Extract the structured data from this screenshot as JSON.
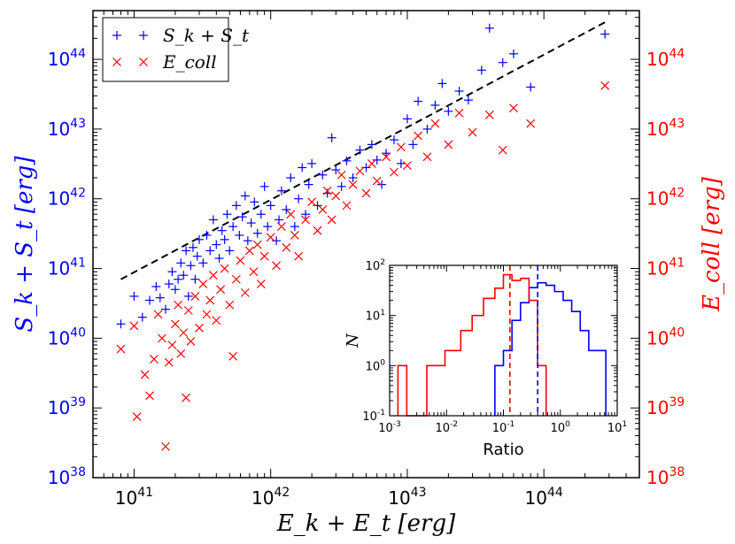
{
  "chart_data": {
    "type": "scatter",
    "xlabel": "E_k + E_t [erg]",
    "ylabel_left": "S_k + S_t [erg]",
    "ylabel_right": "E_coll [erg]",
    "xscale": "log",
    "yscale": "log",
    "xlim": [
      5e+40,
      5e+44
    ],
    "ylim": [
      1e+38,
      5e+44
    ],
    "x_ticks": [
      "10^41",
      "10^42",
      "10^43",
      "10^44"
    ],
    "y_ticks": [
      "10^38",
      "10^39",
      "10^40",
      "10^41",
      "10^42",
      "10^43",
      "10^44"
    ],
    "legend": [
      {
        "label": "S_k + S_t",
        "marker": "+",
        "color": "#0000ff"
      },
      {
        "label": "E_coll",
        "marker": "x",
        "color": "#ff0000"
      }
    ],
    "legend_position": "top-left",
    "reference_line": {
      "style": "dashed",
      "color": "#000000",
      "x": [
        8e+40,
        2.8e+44
      ],
      "y": [
        7e+40,
        3.4e+44
      ]
    },
    "series": [
      {
        "name": "S_k + S_t",
        "color": "#0000ff",
        "marker": "+",
        "points": [
          [
            8e+40,
            1.6e+40
          ],
          [
            1e+41,
            4e+40
          ],
          [
            1.15e+41,
            2e+40
          ],
          [
            1.3e+41,
            3.5e+40
          ],
          [
            1.45e+41,
            5.5e+40
          ],
          [
            1.55e+41,
            3.8e+40
          ],
          [
            1.7e+41,
            2.6e+40
          ],
          [
            1.8e+41,
            6e+40
          ],
          [
            1.9e+41,
            9e+40
          ],
          [
            2e+41,
            5e+40
          ],
          [
            2.1e+41,
            7e+40
          ],
          [
            2.2e+41,
            1.2e+41
          ],
          [
            2.3e+41,
            8e+40
          ],
          [
            2.4e+41,
            1.8e+41
          ],
          [
            2.5e+41,
            4e+40
          ],
          [
            2.6e+41,
            1.1e+41
          ],
          [
            2.7e+41,
            2e+41
          ],
          [
            2.8e+41,
            7e+40
          ],
          [
            2.9e+41,
            1.5e+41
          ],
          [
            3e+41,
            2.6e+41
          ],
          [
            3.2e+41,
            1.2e+41
          ],
          [
            3.4e+41,
            3e+41
          ],
          [
            3.6e+41,
            1.8e+41
          ],
          [
            3.8e+41,
            5e+41
          ],
          [
            4e+41,
            2.2e+41
          ],
          [
            4.2e+41,
            1.4e+41
          ],
          [
            4.4e+41,
            3.5e+41
          ],
          [
            4.6e+41,
            2.6e+41
          ],
          [
            4.8e+41,
            6e+41
          ],
          [
            5e+41,
            1.8e+41
          ],
          [
            5.3e+41,
            4e+41
          ],
          [
            5.6e+41,
            8e+41
          ],
          [
            5.9e+41,
            3e+41
          ],
          [
            6.2e+41,
            5.5e+41
          ],
          [
            6.5e+41,
            1.1e+42
          ],
          [
            6.8e+41,
            2.5e+41
          ],
          [
            7.2e+41,
            4.5e+41
          ],
          [
            7.6e+41,
            9e+41
          ],
          [
            8e+41,
            3.2e+41
          ],
          [
            8.5e+41,
            6e+41
          ],
          [
            9e+41,
            1.5e+42
          ],
          [
            9.5e+41,
            4e+41
          ],
          [
            1e+42,
            8e+41
          ],
          [
            1.1e+42,
            2.5e+41
          ],
          [
            1.15e+42,
            5e+41
          ],
          [
            1.2e+42,
            1.3e+42
          ],
          [
            1.3e+42,
            7e+41
          ],
          [
            1.4e+42,
            2e+42
          ],
          [
            1.5e+42,
            4e+41
          ],
          [
            1.6e+42,
            1e+42
          ],
          [
            1.7e+42,
            2.8e+42
          ],
          [
            1.8e+42,
            6e+41
          ],
          [
            1.9e+42,
            1.6e+42
          ],
          [
            2e+42,
            3.2e+42
          ],
          [
            2.2e+42,
            8e+41
          ],
          [
            2.4e+42,
            2.2e+42
          ],
          [
            2.6e+42,
            1.2e+42
          ],
          [
            2.8e+42,
            7.5e+42
          ],
          [
            3e+42,
            2.6e+42
          ],
          [
            3.3e+42,
            1.5e+42
          ],
          [
            3.6e+42,
            3.5e+42
          ],
          [
            4e+42,
            2e+42
          ],
          [
            4.5e+42,
            5e+42
          ],
          [
            5e+42,
            2.8e+42
          ],
          [
            5.5e+42,
            6e+42
          ],
          [
            6e+42,
            3.6e+42
          ],
          [
            6.5e+42,
            1.6e+42
          ],
          [
            7e+42,
            4.5e+42
          ],
          [
            8e+42,
            7e+42
          ],
          [
            9e+42,
            3.2e+42
          ],
          [
            1e+43,
            1.4e+43
          ],
          [
            1.1e+43,
            6e+42
          ],
          [
            1.2e+43,
            2.5e+43
          ],
          [
            1.4e+43,
            1e+43
          ],
          [
            1.6e+43,
            2.2e+43
          ],
          [
            1.8e+43,
            4.5e+43
          ],
          [
            2e+43,
            1.8e+43
          ],
          [
            2.4e+43,
            3.5e+43
          ],
          [
            2.8e+43,
            2.6e+43
          ],
          [
            3.5e+43,
            7e+43
          ],
          [
            4e+43,
            2.8e+44
          ],
          [
            5e+43,
            9e+43
          ],
          [
            6e+43,
            1.2e+44
          ],
          [
            8e+43,
            4e+43
          ],
          [
            2.8e+44,
            2.3e+44
          ]
        ]
      },
      {
        "name": "E_coll",
        "color": "#ff0000",
        "marker": "x",
        "points": [
          [
            8e+40,
            7e+39
          ],
          [
            1e+41,
            1.5e+40
          ],
          [
            1.05e+41,
            7.5e+38
          ],
          [
            1.2e+41,
            3e+39
          ],
          [
            1.3e+41,
            1.5e+39
          ],
          [
            1.4e+41,
            5e+39
          ],
          [
            1.5e+41,
            2.2e+40
          ],
          [
            1.6e+41,
            1e+40
          ],
          [
            1.7e+41,
            2.8e+38
          ],
          [
            1.8e+41,
            4.5e+39
          ],
          [
            1.9e+41,
            8e+39
          ],
          [
            2e+41,
            1.6e+40
          ],
          [
            2.1e+41,
            3e+40
          ],
          [
            2.2e+41,
            6e+39
          ],
          [
            2.3e+41,
            1.2e+40
          ],
          [
            2.4e+41,
            1.4e+39
          ],
          [
            2.5e+41,
            2.5e+40
          ],
          [
            2.6e+41,
            9e+39
          ],
          [
            2.8e+41,
            4e+40
          ],
          [
            3e+41,
            1.4e+40
          ],
          [
            3.2e+41,
            6e+40
          ],
          [
            3.4e+41,
            2.2e+40
          ],
          [
            3.6e+41,
            3.5e+40
          ],
          [
            3.8e+41,
            8e+40
          ],
          [
            4e+41,
            1.8e+40
          ],
          [
            4.3e+41,
            5e+40
          ],
          [
            4.6e+41,
            1e+41
          ],
          [
            5e+41,
            3e+40
          ],
          [
            5.3e+41,
            5.5e+39
          ],
          [
            5.6e+41,
            7e+40
          ],
          [
            6e+41,
            1.3e+41
          ],
          [
            6.5e+41,
            4.5e+40
          ],
          [
            7e+41,
            1.8e+41
          ],
          [
            7.5e+41,
            9e+40
          ],
          [
            8e+41,
            2.2e+41
          ],
          [
            8.5e+41,
            6e+40
          ],
          [
            9e+41,
            1.5e+41
          ],
          [
            1e+42,
            2.8e+41
          ],
          [
            1.1e+42,
            1.1e+41
          ],
          [
            1.2e+42,
            4e+41
          ],
          [
            1.3e+42,
            2e+41
          ],
          [
            1.4e+42,
            6e+41
          ],
          [
            1.5e+42,
            3e+41
          ],
          [
            1.6e+42,
            1.5e+41
          ],
          [
            1.8e+42,
            5e+41
          ],
          [
            2e+42,
            9e+41
          ],
          [
            2.2e+42,
            3.5e+41
          ],
          [
            2.4e+42,
            7e+41
          ],
          [
            2.6e+42,
            1.3e+42
          ],
          [
            2.8e+42,
            5e+41
          ],
          [
            3e+42,
            1.1e+42
          ],
          [
            3.3e+42,
            2.2e+42
          ],
          [
            3.6e+42,
            8e+41
          ],
          [
            4e+42,
            1.6e+42
          ],
          [
            4.5e+42,
            2.5e+42
          ],
          [
            5e+42,
            1.2e+42
          ],
          [
            5.5e+42,
            3.2e+42
          ],
          [
            6e+42,
            1.8e+42
          ],
          [
            7e+42,
            4e+42
          ],
          [
            8e+42,
            2.4e+42
          ],
          [
            9e+42,
            5.5e+42
          ],
          [
            1e+43,
            3e+42
          ],
          [
            1.2e+43,
            8e+42
          ],
          [
            1.4e+43,
            4e+42
          ],
          [
            1.6e+43,
            1.2e+43
          ],
          [
            2e+43,
            6e+42
          ],
          [
            2.4e+43,
            1.7e+43
          ],
          [
            3e+43,
            9e+42
          ],
          [
            4e+43,
            1.6e+43
          ],
          [
            5e+43,
            5e+42
          ],
          [
            6e+43,
            2e+43
          ],
          [
            8e+43,
            1.2e+43
          ],
          [
            2.8e+44,
            4.2e+43
          ]
        ]
      }
    ]
  },
  "inset": {
    "type": "step-histogram",
    "xlabel": "Ratio",
    "ylabel": "N",
    "xscale": "log",
    "yscale": "log",
    "xlim": [
      0.001,
      10
    ],
    "ylim": [
      0.1,
      100
    ],
    "x_ticks": [
      "10^-3",
      "10^-2",
      "10^-1",
      "10^0",
      "10^1"
    ],
    "y_ticks": [
      "10^-1",
      "10^0",
      "10^1",
      "10^2"
    ],
    "series": [
      {
        "name": "blue-histogram",
        "color": "#0000ff",
        "edges": [
          0.0708,
          0.1,
          0.1413,
          0.1995,
          0.2818,
          0.3981,
          0.5623,
          0.7943,
          1.122,
          1.585,
          2.239,
          3.162,
          4.467,
          6.31
        ],
        "counts": [
          1,
          2,
          8,
          18,
          36,
          45,
          40,
          30,
          20,
          12,
          5,
          2,
          2
        ]
      },
      {
        "name": "red-histogram",
        "color": "#ff0000",
        "edges": [
          0.0014,
          0.002,
          0.0045,
          0.0094,
          0.0178,
          0.0282,
          0.0447,
          0.0708,
          0.1,
          0.1413,
          0.1995,
          0.2818,
          0.3981,
          0.5623
        ],
        "counts": [
          1,
          0,
          1,
          2,
          5,
          10,
          22,
          35,
          65,
          50,
          55,
          20,
          1
        ]
      }
    ],
    "medians": [
      {
        "color": "#ff0000",
        "value": 0.13
      },
      {
        "color": "#0000ff",
        "value": 0.4
      }
    ]
  }
}
